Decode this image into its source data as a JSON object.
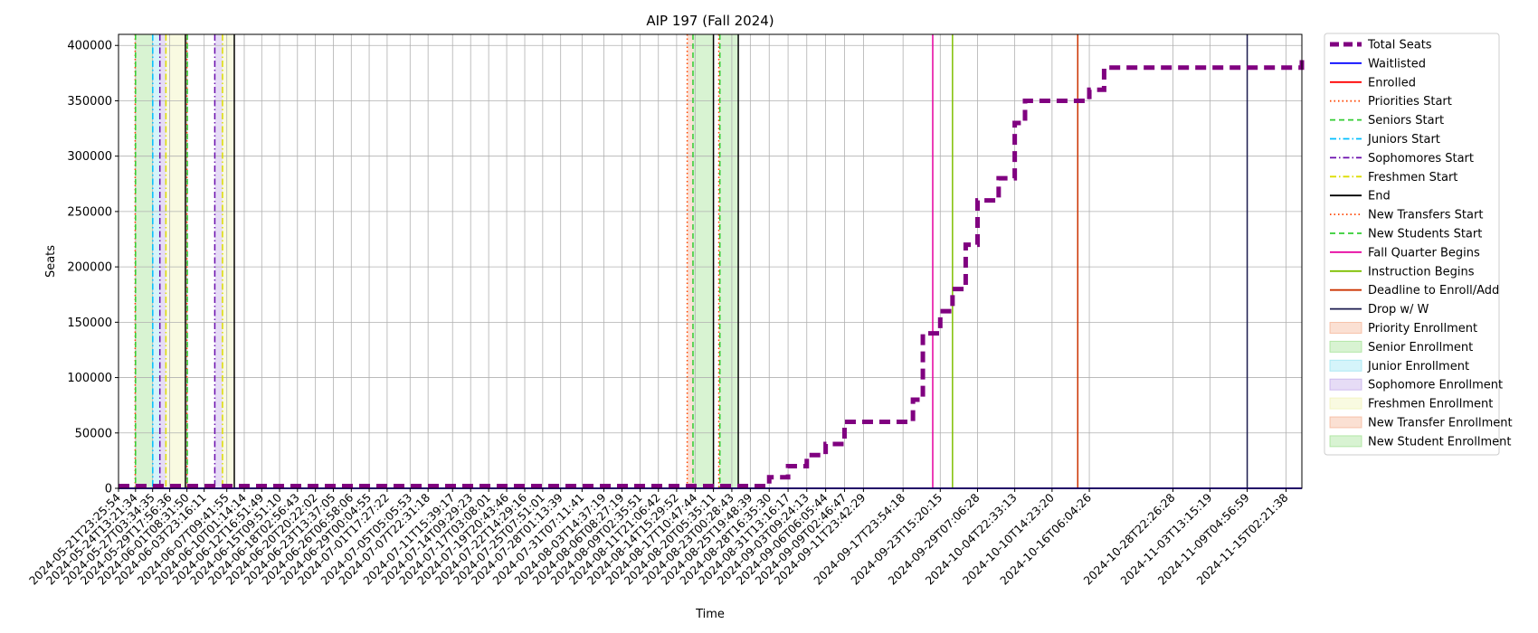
{
  "chart_data": {
    "type": "line",
    "title": "AIP 197 (Fall 2024)",
    "xlabel": "Time",
    "ylabel": "Seats",
    "ylim": [
      0,
      410000
    ],
    "xlim": [
      "2024-05-21T23:25:54",
      "2024-11-17T12:00:00"
    ],
    "grid": true,
    "legend_position": "outside-right",
    "yticks": [
      0,
      50000,
      100000,
      150000,
      200000,
      250000,
      300000,
      350000,
      400000
    ],
    "xtick_labels": [
      "2024-05-21T23:25:54",
      "2024-05-24T13:21:34",
      "2024-05-27T03:34:35",
      "2024-05-29T17:56:36",
      "2024-06-01T08:31:50",
      "2024-06-03T23:16:11",
      "2024-06-07T09:41:55",
      "2024-06-10T01:14:14",
      "2024-06-12T16:51:49",
      "2024-06-15T09:51:10",
      "2024-06-18T02:56:43",
      "2024-06-20T20:22:02",
      "2024-06-23T13:37:05",
      "2024-06-26T06:58:06",
      "2024-06-29T00:04:55",
      "2024-07-01T17:27:22",
      "2024-07-05T05:05:53",
      "2024-07-07T22:31:18",
      "2024-07-11T15:39:17",
      "2024-07-14T09:29:23",
      "2024-07-17T03:08:01",
      "2024-07-19T20:43:46",
      "2024-07-22T14:29:16",
      "2024-07-25T07:51:01",
      "2024-07-28T01:13:39",
      "2024-07-31T07:11:41",
      "2024-08-03T14:37:19",
      "2024-08-06T08:27:19",
      "2024-08-09T02:35:51",
      "2024-08-11T21:06:42",
      "2024-08-14T15:29:52",
      "2024-08-17T10:47:44",
      "2024-08-20T05:35:11",
      "2024-08-23T00:28:43",
      "2024-08-25T19:48:39",
      "2024-08-28T16:35:30",
      "2024-08-31T13:16:17",
      "2024-09-03T09:24:13",
      "2024-09-06T06:05:44",
      "2024-09-09T02:46:47",
      "2024-09-11T23:42:29",
      "2024-09-17T23:54:18",
      "2024-09-23T15:20:15",
      "2024-09-29T07:06:28",
      "2024-10-04T22:33:13",
      "2024-10-10T14:23:20",
      "2024-10-16T06:04:26",
      "2024-10-28T22:26:28",
      "2024-11-03T13:15:19",
      "2024-11-09T04:56:59",
      "2024-11-15T02:21:38"
    ],
    "series": [
      {
        "name": "Total Seats",
        "color": "#800080",
        "style": "dashed-thick",
        "x": [
          "2024-05-21T23:25:54",
          "2024-08-25T19:48:39",
          "2024-08-28T16:35:30",
          "2024-08-31T13:16:17",
          "2024-09-03T09:24:13",
          "2024-09-06T06:05:44",
          "2024-09-09T02:46:47",
          "2024-09-17T23:54:18",
          "2024-09-19T12:00:00",
          "2024-09-21T00:00:00",
          "2024-09-23T15:20:15",
          "2024-09-25T12:00:00",
          "2024-09-27T12:00:00",
          "2024-09-29T07:06:28",
          "2024-10-02T12:00:00",
          "2024-10-04T22:33:13",
          "2024-10-06T12:00:00",
          "2024-10-07T12:00:00",
          "2024-10-13T12:00:00",
          "2024-10-16T06:04:26",
          "2024-10-18T12:00:00",
          "2024-11-17T12:00:00"
        ],
        "y": [
          2000,
          2000,
          10000,
          20000,
          30000,
          40000,
          60000,
          60000,
          80000,
          140000,
          160000,
          180000,
          220000,
          260000,
          280000,
          330000,
          350000,
          350000,
          350000,
          360000,
          380000,
          390000
        ]
      },
      {
        "name": "Waitlisted",
        "color": "#0000ff",
        "style": "solid",
        "x": [
          "2024-05-21T23:25:54",
          "2024-11-17T12:00:00"
        ],
        "y": [
          0,
          0
        ]
      },
      {
        "name": "Enrolled",
        "color": "#ff0000",
        "style": "solid",
        "x": [
          "2024-05-21T23:25:54",
          "2024-11-17T12:00:00"
        ],
        "y": [
          0,
          0
        ]
      }
    ],
    "markers": [
      {
        "name": "Priorities Start",
        "color": "#ff4500",
        "style": "dotted",
        "dates": [
          "2024-05-24T12:00:00",
          "2024-08-16T06:00:00"
        ]
      },
      {
        "name": "Seniors Start",
        "color": "#32cd32",
        "style": "dashed",
        "dates": [
          "2024-05-24T13:21:34",
          "2024-08-17T03:00:00"
        ]
      },
      {
        "name": "Juniors Start",
        "color": "#00bfff",
        "style": "dashdot",
        "dates": [
          "2024-05-27T04:00:00"
        ]
      },
      {
        "name": "Sophomores Start",
        "color": "#6a0dad",
        "style": "dashdot",
        "dates": [
          "2024-05-28T06:00:00",
          "2024-06-05T14:00:00"
        ]
      },
      {
        "name": "Freshmen Start",
        "color": "#dddd00",
        "style": "dashdot",
        "dates": [
          "2024-05-29T04:00:00",
          "2024-06-06T18:00:00"
        ]
      },
      {
        "name": "End",
        "color": "#000000",
        "style": "solid",
        "dates": [
          "2024-06-01T03:00:00",
          "2024-06-08T13:00:00",
          "2024-08-20T05:35:11",
          "2024-08-24T00:00:00"
        ]
      },
      {
        "name": "New Transfers Start",
        "color": "#ff4500",
        "style": "dotted",
        "dates": [
          "2024-06-01T08:31:50",
          "2024-08-21T01:00:00"
        ]
      },
      {
        "name": "New Students Start",
        "color": "#32cd32",
        "style": "dashed",
        "dates": [
          "2024-06-01T10:00:00",
          "2024-08-21T05:00:00"
        ]
      },
      {
        "name": "Fall Quarter Begins",
        "color": "#e6009e",
        "style": "solid",
        "dates": [
          "2024-09-22T12:00:00"
        ]
      },
      {
        "name": "Instruction Begins",
        "color": "#7fbf00",
        "style": "solid",
        "dates": [
          "2024-09-25T12:00:00"
        ]
      },
      {
        "name": "Deadline to Enroll/Add",
        "color": "#cc3300",
        "style": "solid",
        "dates": [
          "2024-10-14T12:00:00"
        ]
      },
      {
        "name": "Drop w/ W",
        "color": "#1a1a4e",
        "style": "solid",
        "dates": [
          "2024-11-09T04:56:59"
        ]
      }
    ],
    "periods": [
      {
        "name": "Priority Enrollment",
        "color": "#f4a582",
        "ranges": [
          [
            "2024-05-24T12:00:00",
            "2024-05-24T13:21:34"
          ],
          [
            "2024-08-16T06:00:00",
            "2024-08-17T03:00:00"
          ]
        ]
      },
      {
        "name": "Senior Enrollment",
        "color": "#8fdc7f",
        "ranges": [
          [
            "2024-05-24T13:21:34",
            "2024-05-27T04:00:00"
          ],
          [
            "2024-08-17T03:00:00",
            "2024-08-20T05:35:11"
          ]
        ]
      },
      {
        "name": "Junior Enrollment",
        "color": "#87dff0",
        "ranges": [
          [
            "2024-05-27T04:00:00",
            "2024-05-28T06:00:00"
          ]
        ]
      },
      {
        "name": "Sophomore Enrollment",
        "color": "#b89be6",
        "ranges": [
          [
            "2024-05-28T06:00:00",
            "2024-05-29T04:00:00"
          ],
          [
            "2024-06-05T14:00:00",
            "2024-06-06T18:00:00"
          ]
        ]
      },
      {
        "name": "Freshmen Enrollment",
        "color": "#eef0a8",
        "ranges": [
          [
            "2024-05-29T04:00:00",
            "2024-06-01T03:00:00"
          ],
          [
            "2024-06-06T18:00:00",
            "2024-06-08T13:00:00"
          ]
        ]
      },
      {
        "name": "New Transfer Enrollment",
        "color": "#f4a582",
        "ranges": [
          [
            "2024-08-21T01:00:00",
            "2024-08-21T05:00:00"
          ]
        ]
      },
      {
        "name": "New Student Enrollment",
        "color": "#8fdc7f",
        "ranges": [
          [
            "2024-06-01T08:31:50",
            "2024-06-01T10:00:00"
          ],
          [
            "2024-08-21T05:00:00",
            "2024-08-24T00:00:00"
          ]
        ]
      }
    ]
  }
}
